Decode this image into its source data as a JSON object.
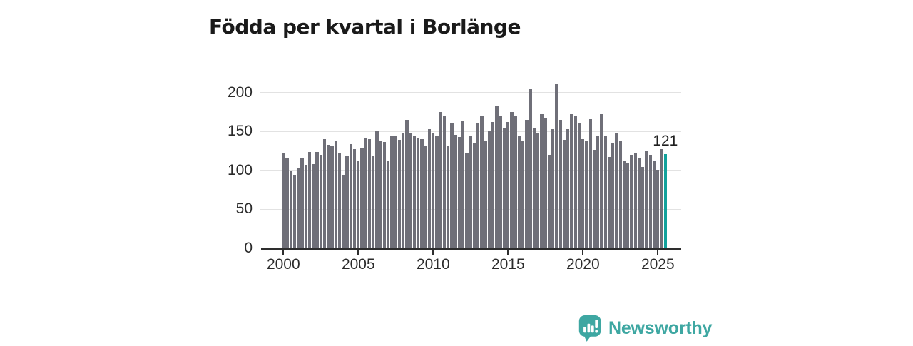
{
  "title": "Födda per kvartal i Borlänge",
  "chart_data": {
    "type": "bar",
    "title": "Födda per kvartal i Borlänge",
    "x_start": "2000 Q1",
    "x_freq": "quarterly",
    "x_tick_labels": [
      "2000",
      "2005",
      "2010",
      "2015",
      "2020",
      "2025"
    ],
    "x_tick_years": [
      2000,
      2005,
      2010,
      2015,
      2020,
      2025
    ],
    "y_tick_labels": [
      "0",
      "50",
      "100",
      "150",
      "200"
    ],
    "y_ticks": [
      0,
      50,
      100,
      150,
      200
    ],
    "ylim": [
      0,
      220
    ],
    "grid": "horizontal",
    "legend": "none",
    "highlight_last_bar": true,
    "last_value_label": "121",
    "values": [
      122,
      115,
      99,
      93,
      103,
      116,
      107,
      124,
      108,
      124,
      120,
      140,
      133,
      131,
      138,
      122,
      93,
      119,
      134,
      127,
      112,
      128,
      141,
      140,
      119,
      151,
      138,
      136,
      112,
      145,
      144,
      139,
      148,
      165,
      147,
      144,
      142,
      140,
      131,
      153,
      148,
      145,
      175,
      169,
      132,
      160,
      146,
      143,
      164,
      123,
      145,
      135,
      160,
      169,
      137,
      150,
      162,
      182,
      169,
      155,
      162,
      175,
      169,
      144,
      138,
      165,
      204,
      155,
      148,
      172,
      167,
      120,
      153,
      211,
      165,
      139,
      153,
      172,
      170,
      161,
      140,
      137,
      166,
      126,
      144,
      172,
      144,
      117,
      135,
      148,
      137,
      112,
      110,
      120,
      122,
      115,
      104,
      125,
      120,
      112,
      101,
      127,
      121
    ]
  },
  "colors": {
    "bar": "#6f6f78",
    "accent": "#12a29c",
    "grid": "#e2e2e2",
    "axis": "#2e2e2e",
    "brand": "#3ea7a2"
  },
  "branding": {
    "logo_text": "Newsworthy",
    "logo_icon": "newsworthy-bar-chart-bubble-icon"
  }
}
